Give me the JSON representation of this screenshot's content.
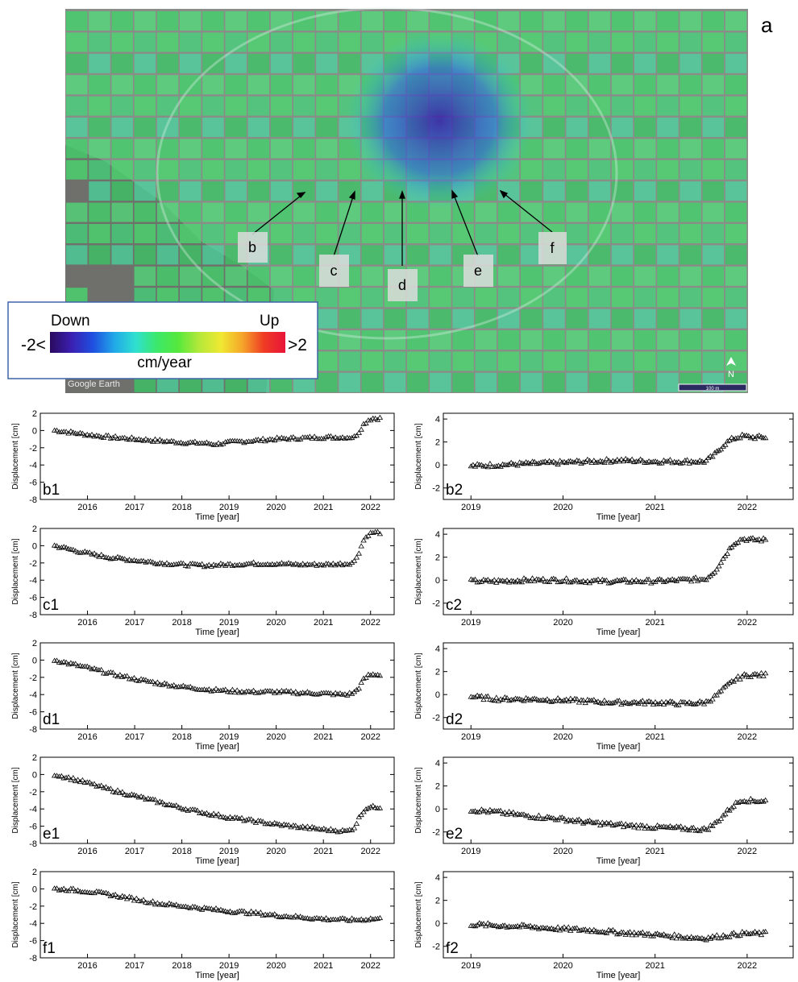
{
  "map": {
    "panel_label": "a",
    "watermark": "Google Earth",
    "scale_bar": "100 m",
    "north_label": "N",
    "point_labels": [
      "b",
      "c",
      "d",
      "e",
      "f"
    ],
    "legend": {
      "down_label": "Down",
      "up_label": "Up",
      "min_label": "-2<",
      "max_label": ">2",
      "unit": "cm/year",
      "colors": [
        "#2a0a5e",
        "#3b1fb0",
        "#1f4fe0",
        "#21a8e8",
        "#2fe0d0",
        "#3ce86a",
        "#56e83c",
        "#b6e83a",
        "#f0e832",
        "#f5a52a",
        "#ef3b24",
        "#e8143a"
      ]
    }
  },
  "chart_data": [
    {
      "type": "scatter",
      "panel_label": "b1",
      "ylabel": "Displacement [cm]",
      "xlabel": "Time [year]",
      "ylim": [
        -8,
        2
      ],
      "yticks": [
        -8,
        -6,
        -4,
        -2,
        0,
        2
      ],
      "xlim": [
        2015.0,
        2022.5
      ],
      "xticks": [
        2016,
        2017,
        2018,
        2019,
        2020,
        2021,
        2022
      ],
      "x": [
        2015.3,
        2015.6,
        2016.0,
        2016.5,
        2017.0,
        2017.5,
        2018.0,
        2018.5,
        2018.7,
        2019.0,
        2019.5,
        2020.0,
        2020.5,
        2021.0,
        2021.5,
        2021.65,
        2021.75,
        2021.85,
        2021.95,
        2022.05,
        2022.2
      ],
      "y": [
        0.0,
        -0.2,
        -0.5,
        -0.8,
        -1.0,
        -1.2,
        -1.4,
        -1.5,
        -1.6,
        -1.4,
        -1.2,
        -1.0,
        -0.9,
        -0.8,
        -0.8,
        -0.8,
        -0.2,
        0.7,
        1.2,
        1.4,
        1.4
      ]
    },
    {
      "type": "scatter",
      "panel_label": "b2",
      "ylabel": "Displacement [cm]",
      "xlabel": "Time [year]",
      "ylim": [
        -3,
        4.5
      ],
      "yticks": [
        -2,
        0,
        2,
        4
      ],
      "xlim": [
        2018.7,
        2022.5
      ],
      "xticks": [
        2019,
        2020,
        2021,
        2022
      ],
      "x": [
        2019.0,
        2019.3,
        2019.6,
        2020.0,
        2020.3,
        2020.6,
        2021.0,
        2021.3,
        2021.55,
        2021.65,
        2021.75,
        2021.85,
        2021.95,
        2022.05,
        2022.2
      ],
      "y": [
        -0.1,
        0.0,
        0.1,
        0.2,
        0.3,
        0.4,
        0.3,
        0.3,
        0.3,
        0.9,
        1.8,
        2.3,
        2.5,
        2.4,
        2.4
      ]
    },
    {
      "type": "scatter",
      "panel_label": "c1",
      "ylabel": "Displacement [cm]",
      "xlabel": "Time [year]",
      "ylim": [
        -8,
        2
      ],
      "yticks": [
        -8,
        -6,
        -4,
        -2,
        0,
        2
      ],
      "xlim": [
        2015.0,
        2022.5
      ],
      "xticks": [
        2016,
        2017,
        2018,
        2019,
        2020,
        2021,
        2022
      ],
      "x": [
        2015.3,
        2015.6,
        2016.0,
        2016.5,
        2017.0,
        2017.5,
        2018.0,
        2018.5,
        2019.0,
        2019.5,
        2020.0,
        2020.5,
        2021.0,
        2021.5,
        2021.65,
        2021.75,
        2021.85,
        2021.95,
        2022.05,
        2022.2
      ],
      "y": [
        0.0,
        -0.4,
        -0.9,
        -1.4,
        -1.7,
        -2.0,
        -2.2,
        -2.3,
        -2.2,
        -2.1,
        -2.1,
        -2.2,
        -2.2,
        -2.1,
        -1.9,
        -0.8,
        0.6,
        1.3,
        1.5,
        1.5
      ]
    },
    {
      "type": "scatter",
      "panel_label": "c2",
      "ylabel": "Displacement [cm]",
      "xlabel": "Time [year]",
      "ylim": [
        -3,
        4.5
      ],
      "yticks": [
        -2,
        0,
        2,
        4
      ],
      "xlim": [
        2018.7,
        2022.5
      ],
      "xticks": [
        2019,
        2020,
        2021,
        2022
      ],
      "x": [
        2019.0,
        2019.3,
        2019.6,
        2020.0,
        2020.3,
        2020.6,
        2021.0,
        2021.3,
        2021.55,
        2021.65,
        2021.75,
        2021.85,
        2021.95,
        2022.05,
        2022.2
      ],
      "y": [
        -0.1,
        -0.1,
        0.0,
        0.0,
        -0.1,
        -0.1,
        -0.1,
        0.0,
        0.1,
        0.8,
        2.0,
        3.2,
        3.6,
        3.5,
        3.5
      ]
    },
    {
      "type": "scatter",
      "panel_label": "d1",
      "ylabel": "Displacement [cm]",
      "xlabel": "Time [year]",
      "ylim": [
        -8,
        2
      ],
      "yticks": [
        -8,
        -6,
        -4,
        -2,
        0,
        2
      ],
      "xlim": [
        2015.0,
        2022.5
      ],
      "xticks": [
        2016,
        2017,
        2018,
        2019,
        2020,
        2021,
        2022
      ],
      "x": [
        2015.3,
        2015.6,
        2016.0,
        2016.5,
        2017.0,
        2017.5,
        2018.0,
        2018.5,
        2019.0,
        2019.5,
        2020.0,
        2020.5,
        2021.0,
        2021.5,
        2021.65,
        2021.75,
        2021.85,
        2021.95,
        2022.05,
        2022.2
      ],
      "y": [
        0.0,
        -0.4,
        -0.9,
        -1.6,
        -2.2,
        -2.7,
        -3.1,
        -3.4,
        -3.6,
        -3.7,
        -3.7,
        -3.8,
        -3.9,
        -4.0,
        -3.8,
        -3.2,
        -2.3,
        -1.8,
        -1.7,
        -1.7
      ]
    },
    {
      "type": "scatter",
      "panel_label": "d2",
      "ylabel": "Displacement [cm]",
      "xlabel": "Time [year]",
      "ylim": [
        -3,
        4.5
      ],
      "yticks": [
        -2,
        0,
        2,
        4
      ],
      "xlim": [
        2018.7,
        2022.5
      ],
      "xticks": [
        2019,
        2020,
        2021,
        2022
      ],
      "x": [
        2019.0,
        2019.3,
        2019.6,
        2020.0,
        2020.3,
        2020.6,
        2021.0,
        2021.3,
        2021.55,
        2021.65,
        2021.75,
        2021.85,
        2021.95,
        2022.05,
        2022.2
      ],
      "y": [
        -0.2,
        -0.4,
        -0.4,
        -0.5,
        -0.6,
        -0.7,
        -0.7,
        -0.8,
        -0.7,
        -0.2,
        0.5,
        1.2,
        1.6,
        1.7,
        1.7
      ]
    },
    {
      "type": "scatter",
      "panel_label": "e1",
      "ylabel": "Displacement [cm]",
      "xlabel": "Time [year]",
      "ylim": [
        -8,
        2
      ],
      "yticks": [
        -8,
        -6,
        -4,
        -2,
        0,
        2
      ],
      "xlim": [
        2015.0,
        2022.5
      ],
      "xticks": [
        2016,
        2017,
        2018,
        2019,
        2020,
        2021,
        2022
      ],
      "x": [
        2015.3,
        2015.6,
        2016.0,
        2016.5,
        2017.0,
        2017.5,
        2018.0,
        2018.5,
        2019.0,
        2019.5,
        2020.0,
        2020.5,
        2021.0,
        2021.5,
        2021.65,
        2021.75,
        2021.85,
        2021.95,
        2022.05,
        2022.2
      ],
      "y": [
        0.0,
        -0.4,
        -1.0,
        -1.8,
        -2.5,
        -3.2,
        -3.9,
        -4.5,
        -5.0,
        -5.4,
        -5.8,
        -6.1,
        -6.4,
        -6.6,
        -6.2,
        -5.1,
        -4.2,
        -3.8,
        -3.8,
        -3.8
      ]
    },
    {
      "type": "scatter",
      "panel_label": "e2",
      "ylabel": "Displacement [cm]",
      "xlabel": "Time [year]",
      "ylim": [
        -3,
        4.5
      ],
      "yticks": [
        -2,
        0,
        2,
        4
      ],
      "xlim": [
        2018.7,
        2022.5
      ],
      "xticks": [
        2019,
        2020,
        2021,
        2022
      ],
      "x": [
        2019.0,
        2019.3,
        2019.6,
        2020.0,
        2020.3,
        2020.6,
        2021.0,
        2021.3,
        2021.55,
        2021.65,
        2021.75,
        2021.85,
        2021.95,
        2022.05,
        2022.2
      ],
      "y": [
        -0.1,
        -0.3,
        -0.6,
        -0.9,
        -1.2,
        -1.4,
        -1.6,
        -1.7,
        -1.8,
        -1.3,
        -0.5,
        0.3,
        0.8,
        0.7,
        0.7
      ]
    },
    {
      "type": "scatter",
      "panel_label": "f1",
      "ylabel": "Displacement [cm]",
      "xlabel": "Time [year]",
      "ylim": [
        -8,
        2
      ],
      "yticks": [
        -8,
        -6,
        -4,
        -2,
        0,
        2
      ],
      "xlim": [
        2015.0,
        2022.5
      ],
      "xticks": [
        2016,
        2017,
        2018,
        2019,
        2020,
        2021,
        2022
      ],
      "x": [
        2015.3,
        2015.6,
        2016.0,
        2016.5,
        2017.0,
        2017.5,
        2018.0,
        2018.5,
        2019.0,
        2019.5,
        2020.0,
        2020.5,
        2021.0,
        2021.5,
        2021.75,
        2022.0,
        2022.2
      ],
      "y": [
        0.0,
        -0.1,
        -0.3,
        -0.7,
        -1.2,
        -1.7,
        -2.0,
        -2.3,
        -2.6,
        -2.8,
        -3.1,
        -3.3,
        -3.5,
        -3.6,
        -3.6,
        -3.5,
        -3.5
      ]
    },
    {
      "type": "scatter",
      "panel_label": "f2",
      "ylabel": "Displacement [cm]",
      "xlabel": "Time [year]",
      "ylim": [
        -3,
        4.5
      ],
      "yticks": [
        -2,
        0,
        2,
        4
      ],
      "xlim": [
        2018.7,
        2022.5
      ],
      "xticks": [
        2019,
        2020,
        2021,
        2022
      ],
      "x": [
        2019.0,
        2019.3,
        2019.6,
        2020.0,
        2020.3,
        2020.6,
        2021.0,
        2021.3,
        2021.55,
        2021.75,
        2021.95,
        2022.2
      ],
      "y": [
        -0.1,
        -0.2,
        -0.3,
        -0.5,
        -0.6,
        -0.8,
        -1.0,
        -1.2,
        -1.3,
        -1.1,
        -0.9,
        -0.9
      ]
    }
  ]
}
